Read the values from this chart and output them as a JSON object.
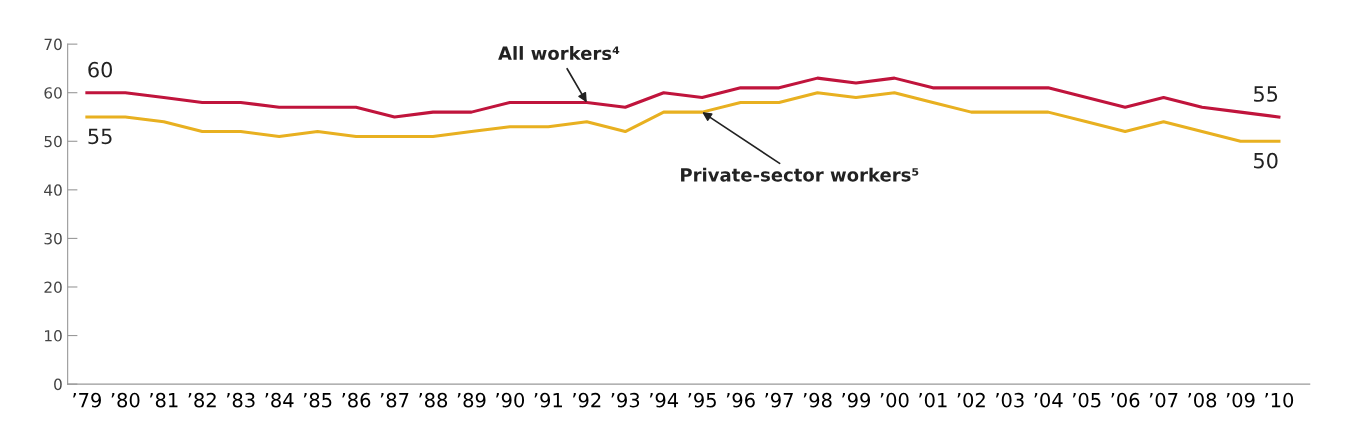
{
  "chart_data": {
    "type": "line",
    "categories": [
      "’79",
      "’80",
      "’81",
      "’82",
      "’83",
      "’84",
      "’85",
      "’86",
      "’87",
      "’88",
      "’89",
      "’90",
      "’91",
      "’92",
      "’93",
      "’94",
      "’95",
      "’96",
      "’97",
      "’98",
      "’99",
      "’00",
      "’01",
      "’02",
      "’03",
      "’04",
      "’05",
      "’06",
      "’07",
      "’08",
      "’09",
      "’10"
    ],
    "series": [
      {
        "color": "#c0143c",
        "values": [
          60,
          60,
          59,
          58,
          58,
          57,
          57,
          57,
          55,
          56,
          56,
          58,
          58,
          58,
          57,
          60,
          59,
          61,
          61,
          63,
          62,
          63,
          61,
          61,
          61,
          61,
          59,
          57,
          59,
          57,
          56,
          55
        ],
        "value_labels": [
          "60",
          null,
          null,
          null,
          null,
          null,
          null,
          null,
          null,
          null,
          null,
          null,
          null,
          null,
          null,
          null,
          null,
          null,
          null,
          null,
          null,
          null,
          null,
          null,
          null,
          null,
          null,
          null,
          null,
          null,
          null,
          "55"
        ]
      },
      {
        "color": "#e8b020",
        "values": [
          55,
          55,
          54,
          52,
          52,
          51,
          52,
          51,
          51,
          51,
          52,
          53,
          53,
          54,
          52,
          56,
          56,
          58,
          58,
          60,
          59,
          60,
          58,
          56,
          56,
          56,
          54,
          52,
          54,
          52,
          50,
          50
        ],
        "value_labels": [
          "55",
          null,
          null,
          null,
          null,
          null,
          null,
          null,
          null,
          null,
          null,
          null,
          null,
          null,
          null,
          null,
          null,
          null,
          null,
          null,
          null,
          null,
          null,
          null,
          null,
          null,
          null,
          null,
          null,
          null,
          null,
          "50"
        ]
      }
    ],
    "annotations": [
      {
        "text": "All workers⁴",
        "x": "’92",
        "y": 58
      },
      {
        "text": "Private-sector workers⁵",
        "x": "’95",
        "y": 56
      }
    ],
    "ylim": [
      0,
      70
    ],
    "yticks": [
      0,
      10,
      20,
      30,
      40,
      50,
      60,
      70
    ],
    "grid": false,
    "legend": false,
    "marker": "none",
    "line_style": "solid"
  }
}
